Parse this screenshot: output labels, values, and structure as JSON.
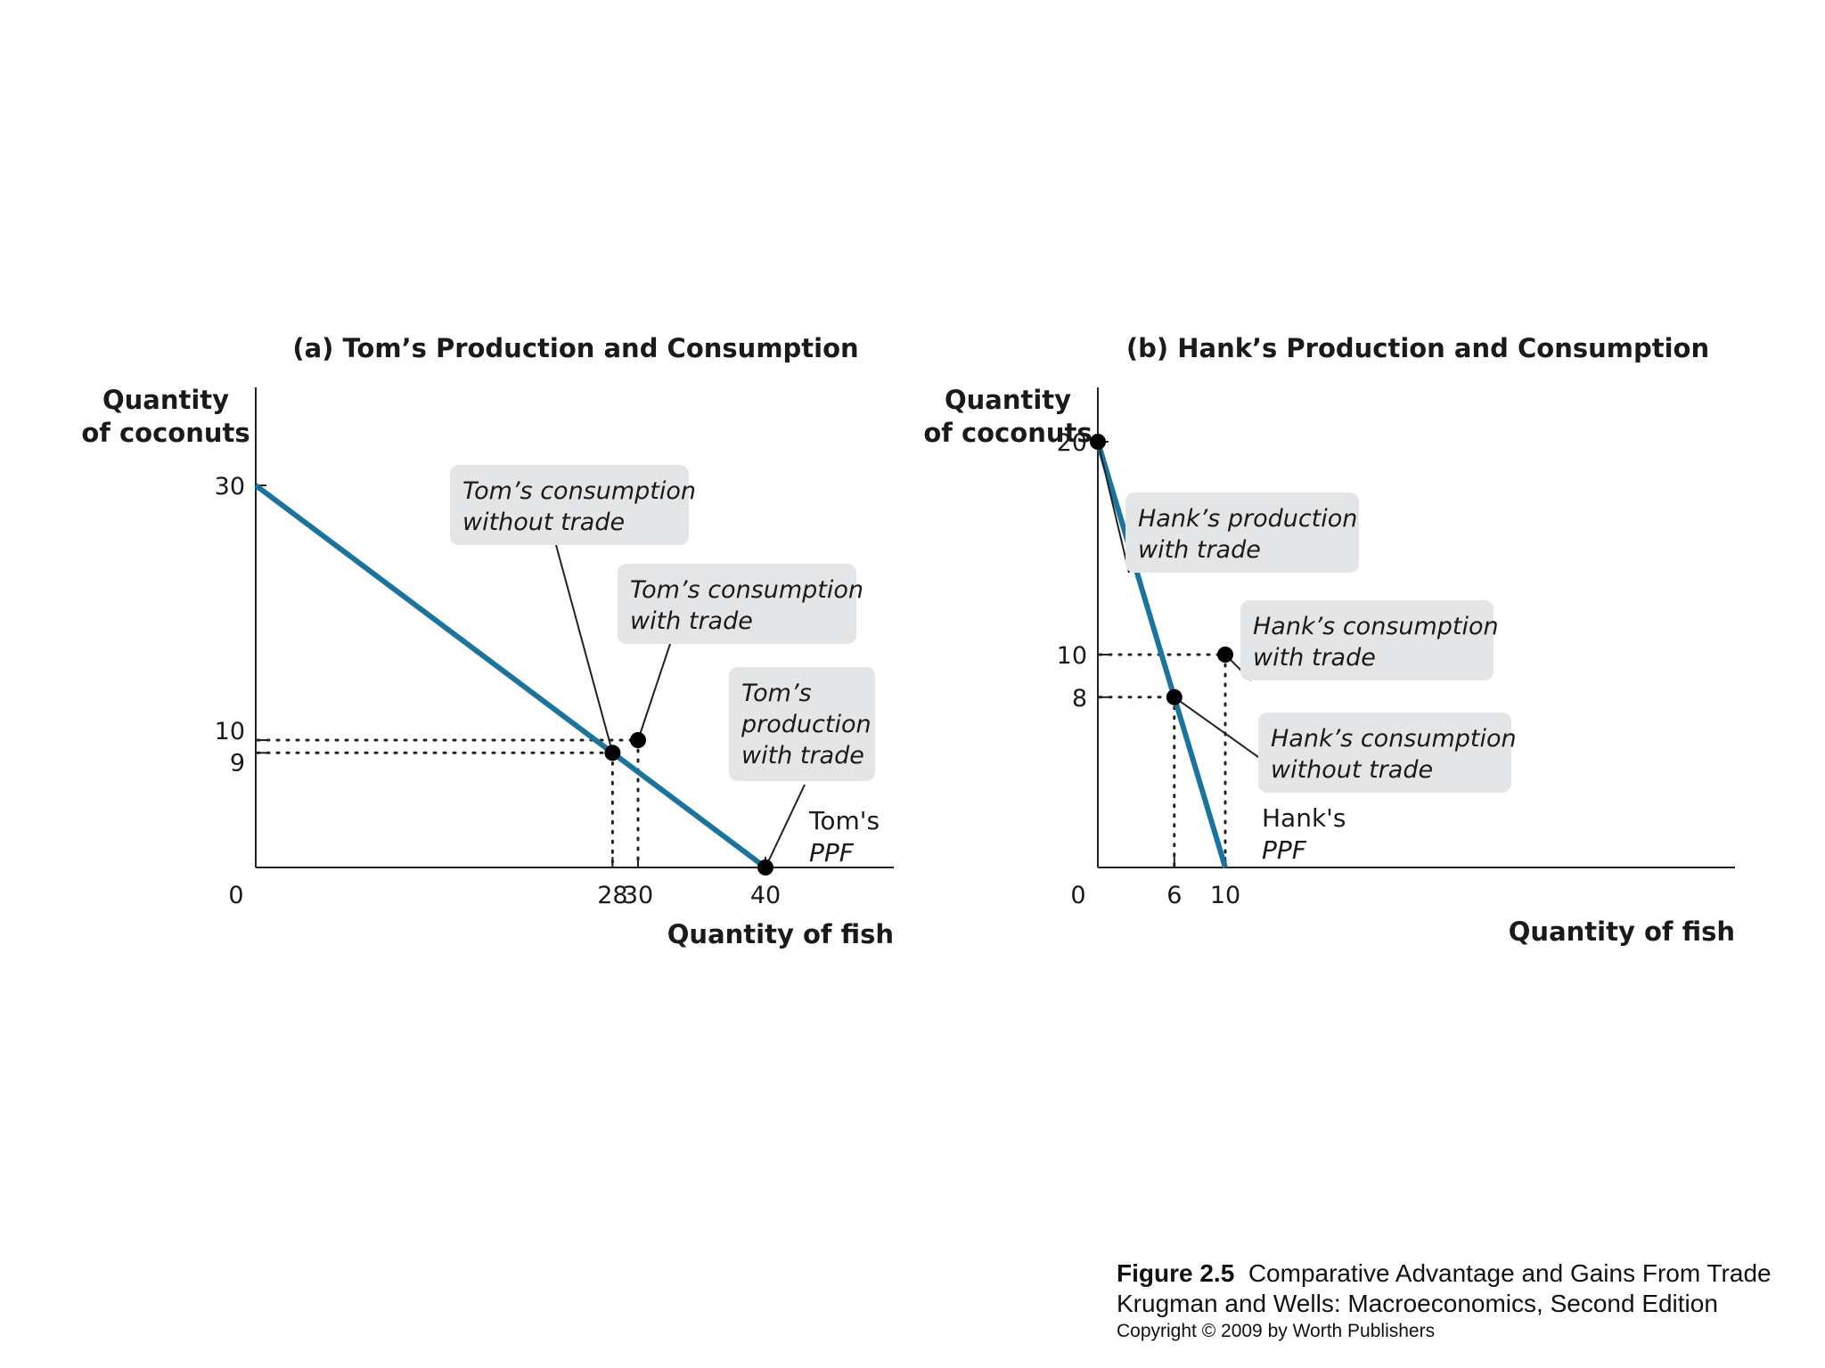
{
  "chart_data": [
    {
      "type": "line",
      "title": "(a) Tom’s Production and Consumption",
      "ylabel": [
        "Quantity",
        "of coconuts"
      ],
      "xlabel": "Quantity of fish",
      "xlim": [
        0,
        50
      ],
      "ylim": [
        0,
        35
      ],
      "x_ticks": [
        0,
        28,
        30,
        40
      ],
      "y_ticks": [
        30,
        10,
        9
      ],
      "origin_label": "0",
      "grid": false,
      "series": [
        {
          "name": "Tom's PPF",
          "x": [
            0,
            40
          ],
          "y": [
            30,
            0
          ]
        }
      ],
      "ppf_label": [
        "Tom's",
        "PPF"
      ],
      "points": [
        {
          "x": 28,
          "y": 9,
          "guides": true,
          "annotation": [
            "Tom’s consumption",
            "without trade"
          ]
        },
        {
          "x": 30,
          "y": 10,
          "guides": true,
          "annotation": [
            "Tom’s consumption",
            "with trade"
          ]
        },
        {
          "x": 40,
          "y": 0,
          "guides": false,
          "annotation": [
            "Tom’s",
            "production",
            "with trade"
          ]
        }
      ]
    },
    {
      "type": "line",
      "title": "(b) Hank’s Production and Consumption",
      "ylabel": [
        "Quantity",
        "of coconuts"
      ],
      "xlabel": "Quantity of fish",
      "xlim": [
        0,
        50
      ],
      "ylim": [
        0,
        28.5
      ],
      "x_ticks": [
        0,
        6,
        10
      ],
      "y_ticks": [
        20,
        10,
        8
      ],
      "origin_label": "0",
      "grid": false,
      "series": [
        {
          "name": "Hank's PPF",
          "x": [
            0,
            10
          ],
          "y": [
            20,
            0
          ]
        }
      ],
      "ppf_label": [
        "Hank's",
        "PPF"
      ],
      "points": [
        {
          "x": 0,
          "y": 20,
          "guides": false,
          "annotation": [
            "Hank’s production",
            "with trade"
          ]
        },
        {
          "x": 10,
          "y": 10,
          "guides": true,
          "annotation": [
            "Hank’s consumption",
            "with trade"
          ]
        },
        {
          "x": 6,
          "y": 8,
          "guides": true,
          "annotation": [
            "Hank’s consumption",
            "without trade"
          ]
        }
      ]
    }
  ],
  "caption": {
    "figure_label": "Figure 2.5",
    "figure_title": "Comparative Advantage and Gains From Trade",
    "book": "Krugman and Wells: Macroeconomics, Second Edition",
    "copyright": "Copyright © 2009 by Worth Publishers"
  },
  "colors": {
    "ppf_line": "#1a74a0",
    "annotation_box": "#e4e5e6",
    "point": "#000000",
    "text": "#1a1a1a"
  }
}
